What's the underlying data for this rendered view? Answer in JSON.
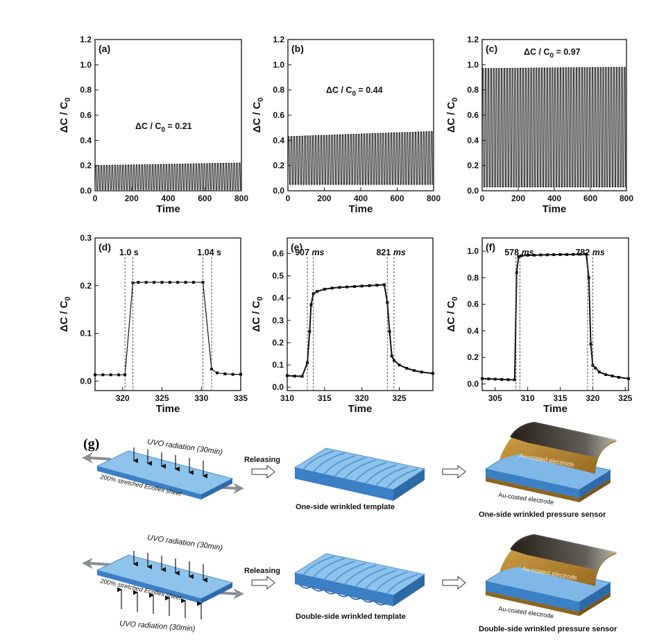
{
  "chart_data": [
    {
      "id": "a",
      "type": "line",
      "panel_label": "(a)",
      "xlabel": "Time",
      "ylabel": "ΔC / C0",
      "xlim": [
        0,
        800
      ],
      "ylim": [
        0,
        1.2
      ],
      "xticks": [
        0,
        200,
        400,
        600,
        800
      ],
      "yticks": [
        0.0,
        0.2,
        0.4,
        0.6,
        0.8,
        1.0,
        1.2
      ],
      "annotation": "ΔC / C0 = 0.21",
      "series": [
        {
          "pulses": 54,
          "low": 0.01,
          "high_start": 0.2,
          "high_end": 0.22
        }
      ]
    },
    {
      "id": "b",
      "type": "line",
      "panel_label": "(b)",
      "xlabel": "Time",
      "ylabel": "ΔC / C0",
      "xlim": [
        0,
        800
      ],
      "ylim": [
        0,
        1.2
      ],
      "xticks": [
        0,
        200,
        400,
        600,
        800
      ],
      "yticks": [
        0.0,
        0.2,
        0.4,
        0.6,
        0.8,
        1.0,
        1.2
      ],
      "annotation": "ΔC / C0 = 0.44",
      "series": [
        {
          "pulses": 54,
          "low": 0.05,
          "high_start": 0.43,
          "high_end": 0.47
        }
      ]
    },
    {
      "id": "c",
      "type": "line",
      "panel_label": "(c)",
      "xlabel": "Time",
      "ylabel": "ΔC / C0",
      "xlim": [
        0,
        800
      ],
      "ylim": [
        0,
        1.2
      ],
      "xticks": [
        0,
        200,
        400,
        600,
        800
      ],
      "yticks": [
        0.0,
        0.2,
        0.4,
        0.6,
        0.8,
        1.0,
        1.2
      ],
      "annotation": "ΔC / C0 = 0.97",
      "series": [
        {
          "pulses": 54,
          "low": 0.03,
          "high_start": 0.97,
          "high_end": 0.98
        }
      ]
    },
    {
      "id": "d",
      "type": "line",
      "panel_label": "(d)",
      "xlabel": "Time",
      "ylabel": "ΔC / C0",
      "xlim": [
        316.5,
        335
      ],
      "ylim": [
        -0.02,
        0.3
      ],
      "xticks": [
        320,
        325,
        330,
        335
      ],
      "yticks": [
        0.0,
        0.1,
        0.2,
        0.3
      ],
      "markers": [
        {
          "text": "1.0 s",
          "at": 320.8,
          "lines": [
            320.3,
            321.3
          ]
        },
        {
          "text": "1.04 s",
          "at": 331.0,
          "lines": [
            330.2,
            331.3
          ]
        }
      ],
      "x": [
        316.5,
        317.5,
        318.5,
        319.5,
        320.3,
        321.3,
        322.0,
        323.0,
        324.0,
        325.0,
        326.0,
        327.0,
        328.0,
        329.0,
        330.2,
        331.3,
        332.0,
        333.0,
        334.0,
        335.0
      ],
      "y": [
        0.013,
        0.013,
        0.013,
        0.013,
        0.013,
        0.206,
        0.207,
        0.207,
        0.207,
        0.207,
        0.207,
        0.207,
        0.207,
        0.207,
        0.207,
        0.025,
        0.017,
        0.015,
        0.014,
        0.014
      ]
    },
    {
      "id": "e",
      "type": "line",
      "panel_label": "(e)",
      "xlabel": "Time",
      "ylabel": "ΔC / C0",
      "xlim": [
        310,
        329.5
      ],
      "ylim": [
        -0.015,
        0.67
      ],
      "xticks": [
        310,
        315,
        320,
        325
      ],
      "yticks": [
        0.0,
        0.1,
        0.2,
        0.3,
        0.4,
        0.5,
        0.6
      ],
      "markers": [
        {
          "text": "907 ms",
          "at": 313.0,
          "lines": [
            312.7,
            313.5
          ]
        },
        {
          "text": "821 ms",
          "at": 323.9,
          "lines": [
            323.4,
            324.3
          ]
        }
      ],
      "x": [
        310,
        311,
        312,
        312.7,
        313.0,
        313.2,
        313.5,
        314.0,
        315.0,
        316.0,
        317.0,
        318.0,
        319.0,
        320.0,
        321.0,
        322.0,
        323.0,
        323.4,
        323.7,
        324.0,
        324.3,
        325.0,
        326.0,
        327.0,
        328.0,
        329.5
      ],
      "y": [
        0.052,
        0.05,
        0.049,
        0.11,
        0.25,
        0.37,
        0.42,
        0.43,
        0.44,
        0.445,
        0.448,
        0.45,
        0.452,
        0.454,
        0.456,
        0.458,
        0.46,
        0.38,
        0.25,
        0.14,
        0.12,
        0.1,
        0.085,
        0.075,
        0.068,
        0.062
      ]
    },
    {
      "id": "f",
      "type": "line",
      "panel_label": "(f)",
      "xlabel": "Time",
      "ylabel": "ΔC / C0",
      "xlim": [
        303,
        325.5
      ],
      "ylim": [
        -0.05,
        1.1
      ],
      "xticks": [
        305,
        310,
        315,
        320,
        325
      ],
      "yticks": [
        0.0,
        0.2,
        0.4,
        0.6,
        0.8,
        1.0
      ],
      "markers": [
        {
          "text": "578 ms",
          "at": 308.7,
          "lines": [
            308.2,
            308.8
          ]
        },
        {
          "text": "782 ms",
          "at": 319.6,
          "lines": [
            319.2,
            320.0
          ]
        }
      ],
      "x": [
        303,
        304,
        305,
        306,
        307,
        308.0,
        308.3,
        308.6,
        309.0,
        310.0,
        311.0,
        312.0,
        313.0,
        314.0,
        315.0,
        316.0,
        317.0,
        318.0,
        319.0,
        319.4,
        319.7,
        320.0,
        320.4,
        321.0,
        322.0,
        323.0,
        324.0,
        325.5
      ],
      "y": [
        0.04,
        0.038,
        0.036,
        0.034,
        0.032,
        0.031,
        0.84,
        0.96,
        0.965,
        0.97,
        0.97,
        0.972,
        0.973,
        0.974,
        0.975,
        0.975,
        0.976,
        0.977,
        0.977,
        0.8,
        0.3,
        0.14,
        0.12,
        0.09,
        0.07,
        0.06,
        0.05,
        0.04
      ]
    }
  ],
  "schematic": {
    "label": "(g)",
    "uvo_label": "UVO radiation (30min)",
    "sheet_label": "200% stretched Ecoflex sheet",
    "releasing": "Releasing",
    "one_side_template": "One-side wrinkled template",
    "double_side_template": "Double-side wrinkled template",
    "electrode_label": "Au-coated electrode",
    "one_side_sensor": "One-side wrinkled pressure sensor",
    "double_side_sensor": "Double-side wrinkled pressure sensor"
  },
  "colors": {
    "sheet_top": "#8ec4ec",
    "sheet_side": "#3b7fc4",
    "electrode_gold": "#b8862c",
    "electrode_dark": "#1c1c1c",
    "arrow_gray": "#8a8f96"
  }
}
